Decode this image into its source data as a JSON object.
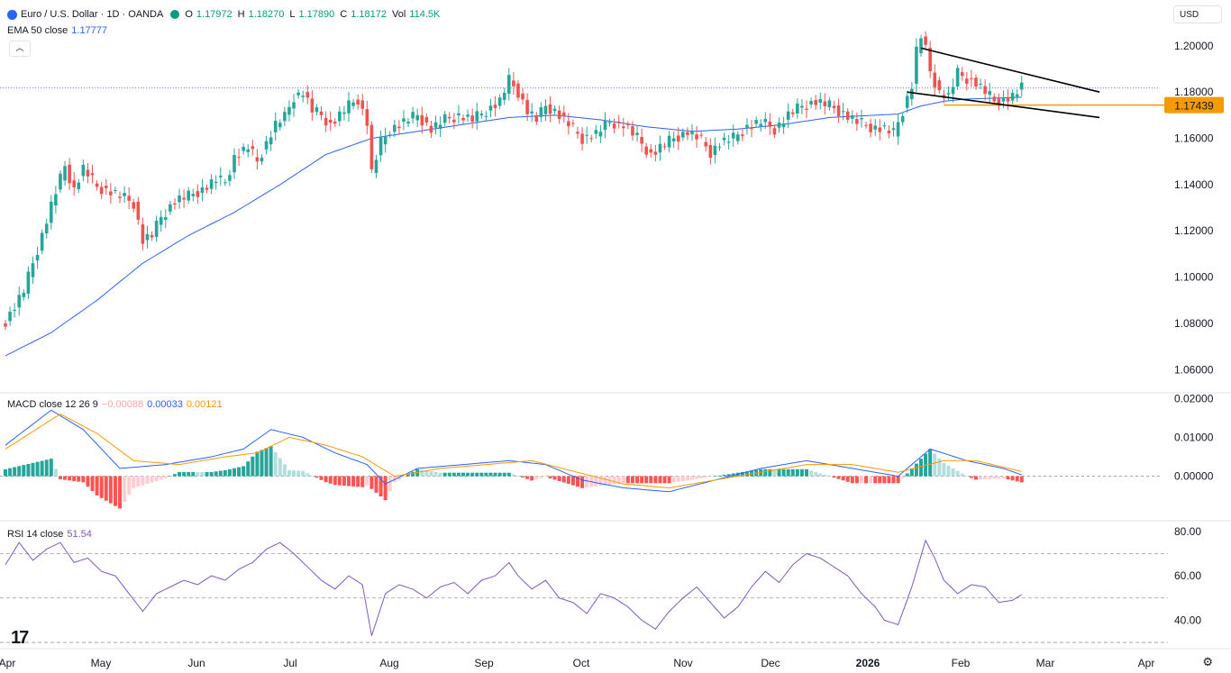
{
  "header": {
    "symbol": "Euro / U.S. Dollar · 1D · OANDA",
    "o_label": "O",
    "o_value": "1.17972",
    "h_label": "H",
    "h_value": "1.18270",
    "l_label": "L",
    "l_value": "1.17890",
    "c_label": "C",
    "c_value": "1.18172",
    "vol_label": "Vol",
    "vol_value": "114.5K",
    "ema_label": "EMA 50 close",
    "ema_value": "1.17777",
    "currency": "USD",
    "collapse_icon": "chevron-up-icon"
  },
  "macd_header": {
    "label": "MACD close 12 26 9",
    "hist": "−0.00088",
    "macd": "0.00033",
    "signal": "0.00121"
  },
  "rsi_header": {
    "label": "RSI 14 close",
    "value": "51.54"
  },
  "colors": {
    "up": "#26a69a",
    "down": "#ef5350",
    "ema": "#2962ff",
    "signal": "#ff9800",
    "rsi": "#7e57c2",
    "support": "#f59b00"
  },
  "chart_data": [
    {
      "type": "candlestick",
      "title": "Euro / U.S. Dollar · 1D · OANDA",
      "ylim": [
        1.05,
        1.212
      ],
      "y_ticks": [
        "1.20000",
        "1.18000",
        "1.16000",
        "1.14000",
        "1.12000",
        "1.10000",
        "1.08000",
        "1.06000"
      ],
      "x_ticks": [
        "Apr",
        "May",
        "Jun",
        "Jul",
        "Aug",
        "Sep",
        "Oct",
        "Nov",
        "Dec",
        "2026",
        "Feb",
        "Mar",
        "Apr"
      ],
      "price_path": [
        [
          0,
          1.081
        ],
        [
          4,
          1.094
        ],
        [
          7,
          1.112
        ],
        [
          10,
          1.131
        ],
        [
          13,
          1.148
        ],
        [
          15,
          1.138
        ],
        [
          17,
          1.147
        ],
        [
          20,
          1.139
        ],
        [
          23,
          1.137
        ],
        [
          26,
          1.134
        ],
        [
          28,
          1.132
        ],
        [
          30,
          1.116
        ],
        [
          32,
          1.118
        ],
        [
          34,
          1.126
        ],
        [
          37,
          1.133
        ],
        [
          40,
          1.135
        ],
        [
          43,
          1.138
        ],
        [
          46,
          1.142
        ],
        [
          48,
          1.141
        ],
        [
          50,
          1.152
        ],
        [
          53,
          1.156
        ],
        [
          55,
          1.15
        ],
        [
          57,
          1.158
        ],
        [
          59,
          1.166
        ],
        [
          61,
          1.169
        ],
        [
          63,
          1.178
        ],
        [
          65,
          1.18
        ],
        [
          67,
          1.172
        ],
        [
          69,
          1.17
        ],
        [
          71,
          1.166
        ],
        [
          73,
          1.17
        ],
        [
          75,
          1.174
        ],
        [
          77,
          1.177
        ],
        [
          79,
          1.167
        ],
        [
          80,
          1.145
        ],
        [
          82,
          1.158
        ],
        [
          84,
          1.164
        ],
        [
          87,
          1.167
        ],
        [
          90,
          1.17
        ],
        [
          93,
          1.164
        ],
        [
          96,
          1.168
        ],
        [
          99,
          1.17
        ],
        [
          102,
          1.168
        ],
        [
          105,
          1.172
        ],
        [
          108,
          1.176
        ],
        [
          110,
          1.185
        ],
        [
          112,
          1.18
        ],
        [
          114,
          1.172
        ],
        [
          116,
          1.168
        ],
        [
          118,
          1.174
        ],
        [
          120,
          1.172
        ],
        [
          123,
          1.166
        ],
        [
          126,
          1.16
        ],
        [
          129,
          1.162
        ],
        [
          132,
          1.167
        ],
        [
          135,
          1.166
        ],
        [
          138,
          1.16
        ],
        [
          141,
          1.153
        ],
        [
          143,
          1.156
        ],
        [
          146,
          1.16
        ],
        [
          149,
          1.163
        ],
        [
          152,
          1.159
        ],
        [
          154,
          1.154
        ],
        [
          156,
          1.158
        ],
        [
          159,
          1.16
        ],
        [
          162,
          1.165
        ],
        [
          165,
          1.167
        ],
        [
          168,
          1.164
        ],
        [
          171,
          1.17
        ],
        [
          174,
          1.174
        ],
        [
          177,
          1.176
        ],
        [
          180,
          1.174
        ],
        [
          183,
          1.171
        ],
        [
          186,
          1.167
        ],
        [
          189,
          1.165
        ],
        [
          192,
          1.164
        ],
        [
          194,
          1.162
        ],
        [
          196,
          1.172
        ],
        [
          198,
          1.183
        ],
        [
          199,
          1.198
        ],
        [
          200,
          1.204
        ],
        [
          201,
          1.198
        ],
        [
          202,
          1.189
        ],
        [
          204,
          1.18
        ],
        [
          206,
          1.178
        ],
        [
          208,
          1.188
        ],
        [
          210,
          1.186
        ],
        [
          212,
          1.184
        ],
        [
          214,
          1.18
        ],
        [
          216,
          1.176
        ],
        [
          218,
          1.177
        ],
        [
          220,
          1.178
        ],
        [
          222,
          1.1817
        ]
      ],
      "ema50_path": [
        [
          0,
          1.066
        ],
        [
          10,
          1.076
        ],
        [
          20,
          1.09
        ],
        [
          30,
          1.106
        ],
        [
          40,
          1.118
        ],
        [
          50,
          1.128
        ],
        [
          60,
          1.14
        ],
        [
          70,
          1.153
        ],
        [
          80,
          1.16
        ],
        [
          90,
          1.163
        ],
        [
          100,
          1.166
        ],
        [
          110,
          1.169
        ],
        [
          120,
          1.17
        ],
        [
          130,
          1.168
        ],
        [
          140,
          1.165
        ],
        [
          150,
          1.163
        ],
        [
          160,
          1.164
        ],
        [
          170,
          1.166
        ],
        [
          180,
          1.169
        ],
        [
          190,
          1.17
        ],
        [
          195,
          1.1705
        ],
        [
          200,
          1.174
        ],
        [
          205,
          1.176
        ],
        [
          210,
          1.177
        ],
        [
          215,
          1.1773
        ],
        [
          222,
          1.17777
        ]
      ],
      "support_level": "1.17439",
      "wedge_lines": [
        {
          "from": [
            200,
            1.199
          ],
          "to": [
            239,
            1.18
          ]
        },
        {
          "from": [
            197,
            1.18
          ],
          "to": [
            239,
            1.169
          ]
        }
      ]
    },
    {
      "type": "line",
      "title": "MACD close 12 26 9",
      "ylim": [
        -0.011,
        0.021
      ],
      "y_ticks": [
        "0.02000",
        "0.01000",
        "0.00000"
      ],
      "macd_path": [
        [
          0,
          0.008
        ],
        [
          10,
          0.017
        ],
        [
          17,
          0.012
        ],
        [
          25,
          0.002
        ],
        [
          35,
          0.003
        ],
        [
          45,
          0.005
        ],
        [
          52,
          0.007
        ],
        [
          58,
          0.012
        ],
        [
          65,
          0.01
        ],
        [
          72,
          0.006
        ],
        [
          79,
          0.003
        ],
        [
          83,
          -0.002
        ],
        [
          90,
          0.002
        ],
        [
          100,
          0.003
        ],
        [
          110,
          0.004
        ],
        [
          118,
          0.003
        ],
        [
          126,
          -0.001
        ],
        [
          135,
          -0.003
        ],
        [
          145,
          -0.004
        ],
        [
          155,
          -0.001
        ],
        [
          165,
          0.002
        ],
        [
          175,
          0.004
        ],
        [
          185,
          0.002
        ],
        [
          195,
          0.0
        ],
        [
          202,
          0.007
        ],
        [
          210,
          0.004
        ],
        [
          218,
          0.002
        ],
        [
          222,
          0.00033
        ]
      ],
      "signal_path": [
        [
          0,
          0.007
        ],
        [
          12,
          0.016
        ],
        [
          20,
          0.011
        ],
        [
          28,
          0.004
        ],
        [
          38,
          0.003
        ],
        [
          48,
          0.005
        ],
        [
          55,
          0.006
        ],
        [
          62,
          0.01
        ],
        [
          70,
          0.008
        ],
        [
          78,
          0.005
        ],
        [
          85,
          0.0
        ],
        [
          95,
          0.002
        ],
        [
          105,
          0.003
        ],
        [
          115,
          0.004
        ],
        [
          125,
          0.001
        ],
        [
          135,
          -0.002
        ],
        [
          145,
          -0.003
        ],
        [
          155,
          -0.001
        ],
        [
          165,
          0.001
        ],
        [
          175,
          0.003
        ],
        [
          185,
          0.003
        ],
        [
          195,
          0.001
        ],
        [
          205,
          0.004
        ],
        [
          212,
          0.004
        ],
        [
          222,
          0.00121
        ]
      ]
    },
    {
      "type": "line",
      "title": "RSI 14 close",
      "ylim": [
        28,
        84
      ],
      "y_ticks": [
        "80.00",
        "60.00",
        "40.00"
      ],
      "bands": [
        70,
        50,
        30
      ],
      "rsi_path": [
        [
          0,
          65
        ],
        [
          3,
          75
        ],
        [
          6,
          67
        ],
        [
          9,
          72
        ],
        [
          12,
          75
        ],
        [
          15,
          66
        ],
        [
          18,
          68
        ],
        [
          21,
          62
        ],
        [
          24,
          60
        ],
        [
          27,
          52
        ],
        [
          30,
          44
        ],
        [
          33,
          52
        ],
        [
          36,
          55
        ],
        [
          39,
          58
        ],
        [
          42,
          56
        ],
        [
          45,
          60
        ],
        [
          48,
          58
        ],
        [
          51,
          63
        ],
        [
          54,
          66
        ],
        [
          57,
          72
        ],
        [
          60,
          75
        ],
        [
          63,
          70
        ],
        [
          66,
          64
        ],
        [
          69,
          58
        ],
        [
          72,
          54
        ],
        [
          75,
          60
        ],
        [
          78,
          56
        ],
        [
          80,
          33
        ],
        [
          83,
          52
        ],
        [
          86,
          56
        ],
        [
          89,
          54
        ],
        [
          92,
          50
        ],
        [
          95,
          55
        ],
        [
          98,
          57
        ],
        [
          101,
          52
        ],
        [
          104,
          58
        ],
        [
          107,
          60
        ],
        [
          110,
          66
        ],
        [
          112,
          60
        ],
        [
          115,
          54
        ],
        [
          118,
          58
        ],
        [
          121,
          50
        ],
        [
          124,
          48
        ],
        [
          127,
          43
        ],
        [
          130,
          52
        ],
        [
          133,
          50
        ],
        [
          136,
          46
        ],
        [
          139,
          40
        ],
        [
          142,
          36
        ],
        [
          145,
          44
        ],
        [
          148,
          50
        ],
        [
          151,
          55
        ],
        [
          154,
          48
        ],
        [
          157,
          41
        ],
        [
          160,
          46
        ],
        [
          163,
          55
        ],
        [
          166,
          62
        ],
        [
          169,
          57
        ],
        [
          172,
          65
        ],
        [
          175,
          70
        ],
        [
          178,
          68
        ],
        [
          181,
          64
        ],
        [
          184,
          60
        ],
        [
          187,
          52
        ],
        [
          190,
          46
        ],
        [
          192,
          40
        ],
        [
          195,
          38
        ],
        [
          198,
          55
        ],
        [
          201,
          76
        ],
        [
          203,
          68
        ],
        [
          205,
          58
        ],
        [
          208,
          52
        ],
        [
          211,
          56
        ],
        [
          214,
          55
        ],
        [
          217,
          48
        ],
        [
          220,
          49
        ],
        [
          222,
          51.54
        ]
      ]
    }
  ]
}
